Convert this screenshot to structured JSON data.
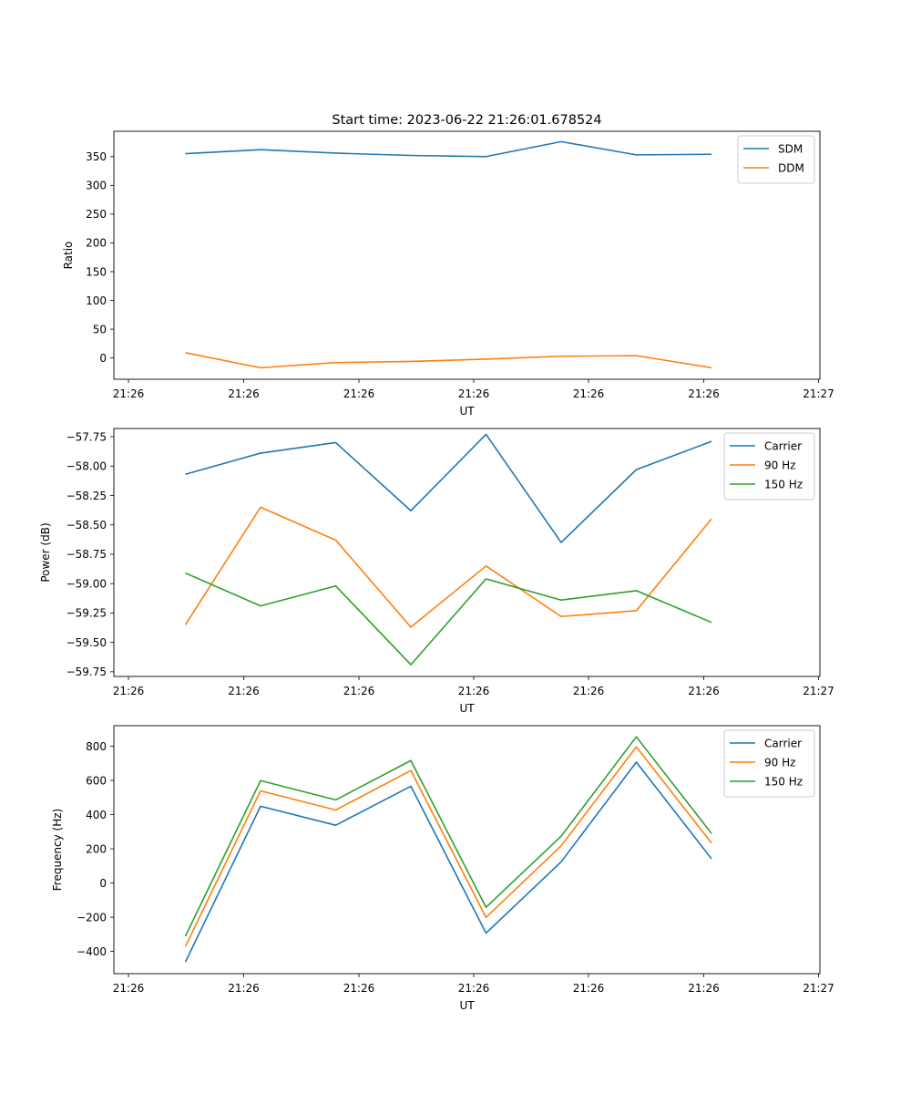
{
  "figure": {
    "title": "Start time: 2023-06-22 21:26:01.678524"
  },
  "colors": {
    "blue": "#1f77b4",
    "orange": "#ff7f0e",
    "green": "#2ca02c",
    "axis": "#000000",
    "legend_border": "#cccccc"
  },
  "chart_data": [
    {
      "type": "line",
      "title": "Start time: 2023-06-22 21:26:01.678524",
      "xlabel": "UT",
      "ylabel": "Ratio",
      "x_tick_labels": [
        "21:26",
        "21:26",
        "21:26",
        "21:26",
        "21:26",
        "21:26",
        "21:27"
      ],
      "y_ticks": [
        0,
        50,
        100,
        150,
        200,
        250,
        300,
        350
      ],
      "ylim": [
        -37,
        394
      ],
      "legend_position": "top-right",
      "grid": false,
      "series": [
        {
          "name": "SDM",
          "color": "#1f77b4",
          "values": [
            355,
            362,
            356,
            352,
            350,
            376,
            353,
            354
          ]
        },
        {
          "name": "DDM",
          "color": "#ff7f0e",
          "values": [
            9,
            -17,
            -8,
            -6,
            -2,
            3,
            4,
            -17
          ]
        }
      ]
    },
    {
      "type": "line",
      "xlabel": "UT",
      "ylabel": "Power (dB)",
      "x_tick_labels": [
        "21:26",
        "21:26",
        "21:26",
        "21:26",
        "21:26",
        "21:26",
        "21:27"
      ],
      "y_ticks": [
        -57.75,
        -58.0,
        -58.25,
        -58.5,
        -58.75,
        -59.0,
        -59.25,
        -59.5,
        -59.75
      ],
      "y_tick_labels": [
        "−57.75",
        "−58.00",
        "−58.25",
        "−58.50",
        "−58.75",
        "−59.00",
        "−59.25",
        "−59.50",
        "−59.75"
      ],
      "ylim": [
        -59.79,
        -57.68
      ],
      "legend_position": "top-right",
      "grid": false,
      "series": [
        {
          "name": "Carrier",
          "color": "#1f77b4",
          "values": [
            -58.07,
            -57.89,
            -57.8,
            -58.38,
            -57.73,
            -58.65,
            -58.03,
            -57.79
          ]
        },
        {
          "name": "90 Hz",
          "color": "#ff7f0e",
          "values": [
            -59.35,
            -58.35,
            -58.63,
            -59.37,
            -58.85,
            -59.28,
            -59.23,
            -58.45
          ]
        },
        {
          "name": "150 Hz",
          "color": "#2ca02c",
          "values": [
            -58.91,
            -59.19,
            -59.02,
            -59.69,
            -58.96,
            -59.14,
            -59.06,
            -59.33
          ]
        }
      ]
    },
    {
      "type": "line",
      "xlabel": "UT",
      "ylabel": "Frequency (Hz)",
      "x_tick_labels": [
        "21:26",
        "21:26",
        "21:26",
        "21:26",
        "21:26",
        "21:26",
        "21:27"
      ],
      "y_ticks": [
        -400,
        -200,
        0,
        200,
        400,
        600,
        800
      ],
      "y_tick_labels": [
        "−400",
        "−200",
        "0",
        "200",
        "400",
        "600",
        "800"
      ],
      "ylim": [
        -530,
        920
      ],
      "legend_position": "top-right",
      "grid": false,
      "series": [
        {
          "name": "Carrier",
          "color": "#1f77b4",
          "values": [
            -462,
            449,
            338,
            566,
            -293,
            124,
            707,
            142
          ]
        },
        {
          "name": "90 Hz",
          "color": "#ff7f0e",
          "values": [
            -371,
            539,
            427,
            658,
            -201,
            218,
            796,
            234
          ]
        },
        {
          "name": "150 Hz",
          "color": "#2ca02c",
          "values": [
            -311,
            599,
            486,
            716,
            -142,
            274,
            855,
            290
          ]
        }
      ]
    }
  ]
}
